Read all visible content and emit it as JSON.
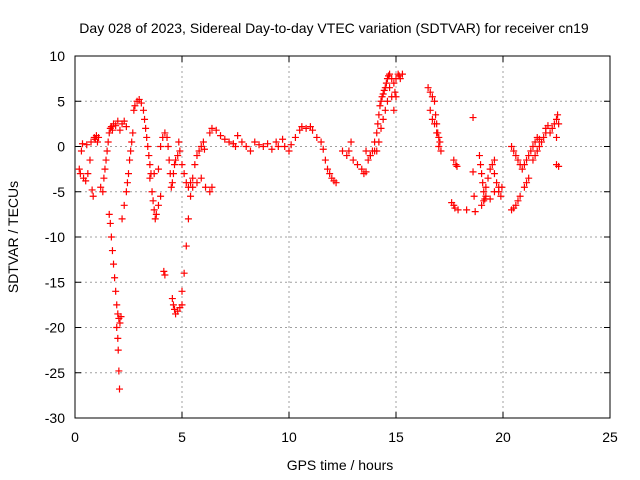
{
  "chart_data": {
    "type": "scatter",
    "title": "Day 028 of 2023, Sidereal Day-to-day VTEC variation (SDTVAR) for receiver cn19",
    "xlabel": "GPS time / hours",
    "ylabel": "SDTVAR / TECUs",
    "xlim": [
      0,
      25
    ],
    "ylim": [
      -30,
      10
    ],
    "xticks": [
      0,
      5,
      10,
      15,
      20,
      25
    ],
    "yticks": [
      -30,
      -25,
      -20,
      -15,
      -10,
      -5,
      0,
      5,
      10
    ],
    "grid": true,
    "marker": "+",
    "marker_color": "#ff0000",
    "series": [
      {
        "name": "SDTVAR",
        "points": [
          [
            0.2,
            -2.5
          ],
          [
            0.25,
            -3.0
          ],
          [
            0.3,
            -0.5
          ],
          [
            0.35,
            0.3
          ],
          [
            0.4,
            -3.5
          ],
          [
            0.5,
            -3.8
          ],
          [
            0.55,
            0.2
          ],
          [
            0.6,
            -3.0
          ],
          [
            0.7,
            -1.5
          ],
          [
            0.75,
            0.5
          ],
          [
            0.8,
            -4.8
          ],
          [
            0.85,
            -5.5
          ],
          [
            0.9,
            1.0
          ],
          [
            0.95,
            0.8
          ],
          [
            1.0,
            1.2
          ],
          [
            1.05,
            0.5
          ],
          [
            1.1,
            1.0
          ],
          [
            1.2,
            -4.5
          ],
          [
            1.3,
            -5.0
          ],
          [
            1.35,
            -3.5
          ],
          [
            1.4,
            -2.5
          ],
          [
            1.45,
            -1.5
          ],
          [
            1.5,
            -0.5
          ],
          [
            1.55,
            0.5
          ],
          [
            1.6,
            1.5
          ],
          [
            1.65,
            2.0
          ],
          [
            1.7,
            2.2
          ],
          [
            1.75,
            1.8
          ],
          [
            1.8,
            2.5
          ],
          [
            1.6,
            -7.5
          ],
          [
            1.65,
            -8.5
          ],
          [
            1.7,
            -10.0
          ],
          [
            1.75,
            -11.5
          ],
          [
            1.8,
            -13.0
          ],
          [
            1.85,
            -14.5
          ],
          [
            1.9,
            -16.0
          ],
          [
            1.95,
            -17.5
          ],
          [
            2.0,
            -18.5
          ],
          [
            2.05,
            -19.0
          ],
          [
            2.1,
            -19.5
          ],
          [
            2.15,
            -18.8
          ],
          [
            1.95,
            -20.0
          ],
          [
            2.0,
            -21.2
          ],
          [
            2.02,
            -22.5
          ],
          [
            2.05,
            -24.8
          ],
          [
            2.08,
            -26.8
          ],
          [
            1.9,
            2.3
          ],
          [
            2.0,
            2.8
          ],
          [
            2.1,
            1.8
          ],
          [
            2.2,
            2.5
          ],
          [
            2.3,
            2.8
          ],
          [
            2.4,
            2.2
          ],
          [
            2.2,
            -8.0
          ],
          [
            2.3,
            -6.5
          ],
          [
            2.4,
            -5.0
          ],
          [
            2.45,
            -4.0
          ],
          [
            2.5,
            -3.0
          ],
          [
            2.55,
            -1.5
          ],
          [
            2.6,
            -0.5
          ],
          [
            2.65,
            0.5
          ],
          [
            2.7,
            1.5
          ],
          [
            2.75,
            4.0
          ],
          [
            2.8,
            4.5
          ],
          [
            2.9,
            5.0
          ],
          [
            3.0,
            5.2
          ],
          [
            3.1,
            4.8
          ],
          [
            3.2,
            4.0
          ],
          [
            3.25,
            3.0
          ],
          [
            3.3,
            2.0
          ],
          [
            3.35,
            1.0
          ],
          [
            3.4,
            0.0
          ],
          [
            3.45,
            -1.0
          ],
          [
            3.5,
            -2.0
          ],
          [
            3.55,
            -3.0
          ],
          [
            3.6,
            -5.0
          ],
          [
            3.65,
            -6.0
          ],
          [
            3.7,
            -7.0
          ],
          [
            3.75,
            -8.0
          ],
          [
            3.8,
            -7.5
          ],
          [
            3.9,
            -6.5
          ],
          [
            4.0,
            -5.5
          ],
          [
            3.5,
            -3.5
          ],
          [
            3.7,
            -3.0
          ],
          [
            3.9,
            -2.5
          ],
          [
            4.0,
            0.0
          ],
          [
            4.1,
            1.0
          ],
          [
            4.2,
            1.5
          ],
          [
            4.3,
            1.0
          ],
          [
            4.35,
            0.0
          ],
          [
            4.4,
            -1.5
          ],
          [
            4.45,
            -3.0
          ],
          [
            4.5,
            -4.5
          ],
          [
            4.55,
            -4.0
          ],
          [
            4.6,
            -3.0
          ],
          [
            4.65,
            -2.0
          ],
          [
            4.7,
            -1.5
          ],
          [
            4.8,
            -1.0
          ],
          [
            4.85,
            0.5
          ],
          [
            4.9,
            -0.5
          ],
          [
            5.0,
            -2.0
          ],
          [
            5.1,
            -3.0
          ],
          [
            5.2,
            -4.0
          ],
          [
            5.3,
            -4.5
          ],
          [
            5.4,
            -4.0
          ],
          [
            4.15,
            -13.8
          ],
          [
            4.2,
            -14.2
          ],
          [
            4.55,
            -16.8
          ],
          [
            4.6,
            -17.5
          ],
          [
            4.65,
            -18.0
          ],
          [
            4.7,
            -18.5
          ],
          [
            4.8,
            -18.2
          ],
          [
            4.9,
            -17.8
          ],
          [
            5.0,
            -17.5
          ],
          [
            5.0,
            -16.0
          ],
          [
            5.1,
            -14.0
          ],
          [
            5.2,
            -11.0
          ],
          [
            5.3,
            -8.0
          ],
          [
            5.4,
            -5.5
          ],
          [
            5.5,
            -3.5
          ],
          [
            5.6,
            -2.0
          ],
          [
            5.7,
            -1.0
          ],
          [
            5.8,
            -0.5
          ],
          [
            5.9,
            0.0
          ],
          [
            6.0,
            0.5
          ],
          [
            6.05,
            -0.3
          ],
          [
            5.5,
            -4.5
          ],
          [
            5.7,
            -4.0
          ],
          [
            5.9,
            -3.5
          ],
          [
            6.1,
            -4.5
          ],
          [
            6.3,
            -5.0
          ],
          [
            6.4,
            -4.5
          ],
          [
            6.3,
            1.5
          ],
          [
            6.4,
            2.0
          ],
          [
            6.6,
            1.8
          ],
          [
            6.8,
            1.2
          ],
          [
            7.0,
            0.8
          ],
          [
            7.2,
            0.5
          ],
          [
            7.4,
            0.3
          ],
          [
            7.5,
            0.0
          ],
          [
            7.6,
            1.2
          ],
          [
            7.8,
            0.5
          ],
          [
            8.0,
            0.0
          ],
          [
            8.2,
            -0.5
          ],
          [
            8.4,
            0.5
          ],
          [
            8.6,
            0.2
          ],
          [
            8.8,
            0.0
          ],
          [
            9.0,
            0.3
          ],
          [
            9.2,
            -0.3
          ],
          [
            9.4,
            0.5
          ],
          [
            9.5,
            0.0
          ],
          [
            9.7,
            0.8
          ],
          [
            9.8,
            0.0
          ],
          [
            10.0,
            -0.5
          ],
          [
            10.1,
            0.2
          ],
          [
            10.3,
            1.0
          ],
          [
            10.5,
            1.8
          ],
          [
            10.6,
            2.2
          ],
          [
            10.8,
            2.0
          ],
          [
            11.0,
            2.2
          ],
          [
            11.1,
            1.8
          ],
          [
            11.3,
            1.0
          ],
          [
            11.5,
            0.5
          ],
          [
            11.6,
            -0.3
          ],
          [
            11.7,
            -1.5
          ],
          [
            11.8,
            -2.5
          ],
          [
            11.9,
            -3.0
          ],
          [
            12.0,
            -3.5
          ],
          [
            12.1,
            -3.8
          ],
          [
            12.2,
            -4.0
          ],
          [
            12.5,
            -0.5
          ],
          [
            12.7,
            -1.0
          ],
          [
            12.8,
            -0.5
          ],
          [
            12.9,
            0.5
          ],
          [
            13.0,
            -1.5
          ],
          [
            13.2,
            -2.0
          ],
          [
            13.4,
            -2.5
          ],
          [
            13.5,
            -3.0
          ],
          [
            13.6,
            -2.8
          ],
          [
            13.7,
            -1.5
          ],
          [
            13.8,
            -1.0
          ],
          [
            13.9,
            -0.5
          ],
          [
            13.6,
            -0.5
          ],
          [
            13.8,
            -1.0
          ],
          [
            14.0,
            -0.5
          ],
          [
            14.0,
            0.5
          ],
          [
            14.1,
            1.5
          ],
          [
            14.15,
            2.5
          ],
          [
            14.2,
            3.5
          ],
          [
            14.25,
            4.5
          ],
          [
            14.3,
            5.0
          ],
          [
            14.35,
            5.5
          ],
          [
            14.4,
            5.8
          ],
          [
            14.45,
            6.2
          ],
          [
            14.5,
            6.5
          ],
          [
            14.55,
            7.0
          ],
          [
            14.6,
            7.5
          ],
          [
            14.65,
            7.8
          ],
          [
            14.7,
            8.0
          ],
          [
            14.8,
            7.5
          ],
          [
            14.9,
            7.0
          ],
          [
            14.95,
            6.0
          ],
          [
            15.0,
            7.5
          ],
          [
            15.1,
            8.0
          ],
          [
            15.15,
            7.8
          ],
          [
            15.2,
            7.5
          ],
          [
            15.3,
            8.0
          ],
          [
            14.1,
            -0.5
          ],
          [
            14.2,
            0.5
          ],
          [
            14.3,
            2.0
          ],
          [
            14.4,
            3.0
          ],
          [
            14.5,
            4.0
          ],
          [
            14.6,
            5.0
          ],
          [
            14.7,
            6.5
          ],
          [
            14.8,
            5.5
          ],
          [
            14.9,
            4.0
          ],
          [
            15.0,
            5.5
          ],
          [
            16.5,
            6.5
          ],
          [
            16.6,
            6.0
          ],
          [
            16.7,
            5.5
          ],
          [
            16.8,
            5.0
          ],
          [
            16.85,
            3.5
          ],
          [
            16.9,
            2.5
          ],
          [
            16.95,
            1.5
          ],
          [
            17.0,
            1.0
          ],
          [
            17.05,
            0.5
          ],
          [
            17.1,
            -0.5
          ],
          [
            16.6,
            4.0
          ],
          [
            16.7,
            3.0
          ],
          [
            16.8,
            2.5
          ],
          [
            16.9,
            1.5
          ],
          [
            17.0,
            0.0
          ],
          [
            17.7,
            -1.5
          ],
          [
            17.8,
            -2.0
          ],
          [
            17.85,
            -2.2
          ],
          [
            17.6,
            -6.2
          ],
          [
            17.7,
            -6.5
          ],
          [
            17.75,
            -6.8
          ],
          [
            17.9,
            -7.0
          ],
          [
            18.3,
            -7.0
          ],
          [
            18.6,
            3.2
          ],
          [
            18.6,
            -2.8
          ],
          [
            18.65,
            -5.5
          ],
          [
            18.7,
            -7.2
          ],
          [
            18.9,
            -1.0
          ],
          [
            18.95,
            -2.0
          ],
          [
            19.0,
            -3.0
          ],
          [
            19.05,
            -4.0
          ],
          [
            19.1,
            -5.0
          ],
          [
            19.15,
            -5.8
          ],
          [
            19.2,
            -4.5
          ],
          [
            19.3,
            -3.5
          ],
          [
            19.4,
            -2.5
          ],
          [
            19.5,
            -2.0
          ],
          [
            19.6,
            -3.0
          ],
          [
            19.7,
            -4.0
          ],
          [
            19.8,
            -5.0
          ],
          [
            19.9,
            -5.5
          ],
          [
            19.95,
            -4.5
          ],
          [
            19.0,
            -6.5
          ],
          [
            19.1,
            -6.0
          ],
          [
            19.2,
            -5.5
          ],
          [
            19.4,
            -5.8
          ],
          [
            19.6,
            -5.0
          ],
          [
            19.8,
            -4.5
          ],
          [
            19.6,
            -1.5
          ],
          [
            20.4,
            0.0
          ],
          [
            20.5,
            -0.5
          ],
          [
            20.6,
            -1.0
          ],
          [
            20.7,
            -1.5
          ],
          [
            20.8,
            -2.0
          ],
          [
            20.9,
            -2.5
          ],
          [
            21.0,
            -2.0
          ],
          [
            21.1,
            -1.5
          ],
          [
            21.2,
            -1.0
          ],
          [
            21.3,
            -0.5
          ],
          [
            21.4,
            0.0
          ],
          [
            21.5,
            0.5
          ],
          [
            21.6,
            1.0
          ],
          [
            21.7,
            0.8
          ],
          [
            21.8,
            0.5
          ],
          [
            21.9,
            1.0
          ],
          [
            22.0,
            1.5
          ],
          [
            20.4,
            -7.0
          ],
          [
            20.5,
            -6.8
          ],
          [
            20.6,
            -6.5
          ],
          [
            20.7,
            -6.0
          ],
          [
            20.8,
            -5.5
          ],
          [
            21.0,
            -4.5
          ],
          [
            21.1,
            -4.0
          ],
          [
            21.2,
            -3.5
          ],
          [
            21.4,
            -1.5
          ],
          [
            21.5,
            -1.0
          ],
          [
            21.6,
            -0.5
          ],
          [
            21.7,
            0.0
          ],
          [
            22.0,
            2.0
          ],
          [
            22.1,
            2.3
          ],
          [
            22.2,
            1.5
          ],
          [
            22.3,
            2.0
          ],
          [
            22.4,
            2.5
          ],
          [
            22.5,
            3.0
          ],
          [
            22.55,
            3.5
          ],
          [
            22.6,
            2.5
          ],
          [
            22.5,
            1.0
          ],
          [
            22.5,
            -2.0
          ],
          [
            22.6,
            -2.2
          ]
        ]
      }
    ]
  }
}
